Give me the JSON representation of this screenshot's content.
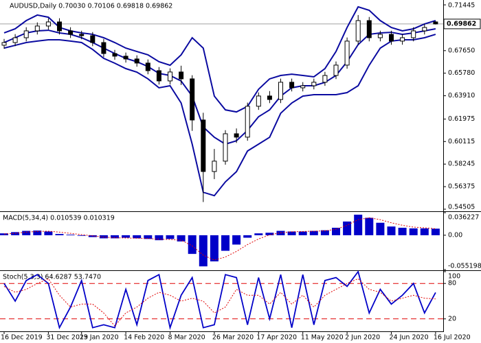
{
  "chart_data": [
    {
      "type": "candlestick",
      "title": "AUDUSD,Daily  0.70030 0.70106 0.69818 0.69862",
      "categories": [
        "16 Dec 2019",
        null,
        null,
        null,
        "31 Dec 2019",
        null,
        null,
        "23 Jan 2020",
        null,
        null,
        null,
        "14 Feb 2020",
        null,
        null,
        null,
        "8 Mar 2020",
        null,
        null,
        null,
        "26 Mar 2020",
        null,
        null,
        null,
        "17 Apr 2020",
        null,
        null,
        null,
        "11 May 2020",
        null,
        null,
        null,
        "2 Jun 2020",
        null,
        null,
        null,
        "24 Jun 2020",
        null,
        null,
        null,
        "16 Jul 2020"
      ],
      "open": [
        0.681,
        0.6832,
        0.6872,
        0.6929,
        0.6969,
        0.7003,
        0.6929,
        0.69,
        0.6889,
        0.6832,
        0.6741,
        0.6719,
        0.6696,
        0.6662,
        0.6599,
        0.6514,
        0.6588,
        0.6531,
        0.619,
        0.5763,
        0.5849,
        0.6076,
        0.6048,
        0.6304,
        0.6389,
        0.636,
        0.6503,
        0.6457,
        0.6474,
        0.6503,
        0.6559,
        0.6645,
        0.6844,
        0.7014,
        0.6872,
        0.69,
        0.6844,
        0.6872,
        0.6929,
        0.7003
      ],
      "high": [
        0.6862,
        0.6902,
        0.6959,
        0.6999,
        0.7033,
        0.7033,
        0.6959,
        0.693,
        0.6919,
        0.6862,
        0.6771,
        0.6749,
        0.6726,
        0.6692,
        0.6629,
        0.6618,
        0.664,
        0.6561,
        0.625,
        0.595,
        0.6106,
        0.612,
        0.6334,
        0.6419,
        0.643,
        0.6533,
        0.6533,
        0.6504,
        0.6533,
        0.6589,
        0.6675,
        0.6874,
        0.706,
        0.7044,
        0.693,
        0.693,
        0.6902,
        0.6959,
        0.6987,
        0.70106
      ],
      "low": [
        0.678,
        0.6802,
        0.6842,
        0.6899,
        0.6939,
        0.6899,
        0.687,
        0.6859,
        0.6802,
        0.6711,
        0.6689,
        0.6666,
        0.6632,
        0.6569,
        0.6484,
        0.6484,
        0.648,
        0.61,
        0.551,
        0.57,
        0.5819,
        0.6,
        0.6018,
        0.6274,
        0.633,
        0.633,
        0.6427,
        0.6427,
        0.6444,
        0.6473,
        0.6529,
        0.6615,
        0.6814,
        0.6842,
        0.6842,
        0.6814,
        0.6814,
        0.6842,
        0.6899,
        0.69818
      ],
      "close": [
        0.6832,
        0.6872,
        0.6929,
        0.6969,
        0.7003,
        0.6929,
        0.69,
        0.6889,
        0.6832,
        0.6741,
        0.6719,
        0.6696,
        0.6662,
        0.6599,
        0.6514,
        0.6588,
        0.6531,
        0.619,
        0.5763,
        0.5849,
        0.6076,
        0.6048,
        0.6304,
        0.6389,
        0.636,
        0.6503,
        0.6457,
        0.6474,
        0.6503,
        0.6559,
        0.6645,
        0.6844,
        0.7014,
        0.6872,
        0.69,
        0.6844,
        0.6872,
        0.6929,
        0.6957,
        0.69862
      ],
      "series": [
        {
          "color": "#0a0aa0",
          "values": [
            0.6912,
            0.6946,
            0.7014,
            0.706,
            0.7042,
            0.6957,
            0.6929,
            0.6912,
            0.69,
            0.6872,
            0.6832,
            0.6786,
            0.6758,
            0.673,
            0.6673,
            0.6644,
            0.673,
            0.6872,
            0.6786,
            0.6388,
            0.6274,
            0.6257,
            0.6303,
            0.6445,
            0.6531,
            0.6559,
            0.657,
            0.6559,
            0.6548,
            0.6616,
            0.6758,
            0.6957,
            0.7128,
            0.7099,
            0.7014,
            0.6957,
            0.6929,
            0.6946,
            0.6986,
            0.7014
          ]
        },
        {
          "color": "#0a0aa0",
          "values": [
            0.6832,
            0.6872,
            0.6912,
            0.6929,
            0.6934,
            0.6912,
            0.69,
            0.6872,
            0.6832,
            0.6786,
            0.6741,
            0.6701,
            0.6673,
            0.6633,
            0.6576,
            0.6559,
            0.6513,
            0.6388,
            0.6132,
            0.6047,
            0.599,
            0.6018,
            0.6104,
            0.6217,
            0.6274,
            0.6388,
            0.6457,
            0.6474,
            0.6474,
            0.6502,
            0.6559,
            0.6673,
            0.6815,
            0.69,
            0.6912,
            0.6917,
            0.69,
            0.6912,
            0.6929,
            0.6946
          ]
        },
        {
          "color": "#0a0aa0",
          "values": [
            0.6786,
            0.6809,
            0.6832,
            0.6844,
            0.6855,
            0.6855,
            0.6844,
            0.6832,
            0.6775,
            0.6701,
            0.6661,
            0.6616,
            0.6587,
            0.6531,
            0.6457,
            0.6474,
            0.6331,
            0.599,
            0.5591,
            0.5563,
            0.5677,
            0.5762,
            0.5933,
            0.599,
            0.6047,
            0.6246,
            0.6331,
            0.6388,
            0.64,
            0.64,
            0.64,
            0.6417,
            0.6474,
            0.6644,
            0.6786,
            0.6844,
            0.6855,
            0.6855,
            0.6872,
            0.69
          ]
        }
      ],
      "last_price": 0.69862,
      "ylim": [
        0.5439,
        0.7179
      ],
      "yticks": [
        0.71445,
        {
          "value": 0.6765,
          "label": "0.67650"
        },
        {
          "value": 0.6578,
          "label": "0.65780"
        },
        {
          "value": 0.6391,
          "label": "0.63910"
        },
        0.61975,
        0.60115,
        0.58245,
        0.56375,
        0.54505
      ]
    },
    {
      "type": "macd",
      "title": "MACD(5,34,4) 0.010539 0.010319",
      "color": "#0000c8",
      "values": [
        0.003,
        0.005,
        0.007,
        0.0075,
        0.006,
        0.002,
        0.001,
        -0.001,
        -0.003,
        -0.005,
        -0.005,
        -0.004,
        -0.005,
        -0.006,
        -0.008,
        -0.006,
        -0.01,
        -0.03,
        -0.05,
        -0.042,
        -0.025,
        -0.015,
        -0.004,
        0.003,
        0.004,
        0.007,
        0.006,
        0.006,
        0.007,
        0.008,
        0.012,
        0.022,
        0.033,
        0.028,
        0.02,
        0.014,
        0.012,
        0.011,
        0.011,
        0.010539
      ],
      "series": [
        {
          "color": "#e00000",
          "values": [
            0.002,
            0.003,
            0.005,
            0.006,
            0.0065,
            0.005,
            0.003,
            0.001,
            -0.001,
            -0.003,
            -0.004,
            -0.0045,
            -0.0048,
            -0.0052,
            -0.0065,
            -0.0068,
            -0.008,
            -0.017,
            -0.032,
            -0.04,
            -0.035,
            -0.026,
            -0.015,
            -0.006,
            0.0005,
            0.004,
            0.0055,
            0.006,
            0.0065,
            0.007,
            0.0095,
            0.016,
            0.025,
            0.028,
            0.025,
            0.02,
            0.016,
            0.013,
            0.012,
            0.010319
          ]
        }
      ],
      "ylim": [
        -0.055198,
        0.036227
      ],
      "yticks": [
        0.036227,
        {
          "value": 0,
          "label": "0.00"
        },
        -0.055198
      ]
    },
    {
      "type": "stochastic",
      "title": "Stoch(5,3,3) 64.6287 53.7470",
      "level_color": "#e00000",
      "series": [
        {
          "color": "#0000c8",
          "values": [
            80,
            50,
            85,
            95,
            80,
            5,
            40,
            85,
            5,
            10,
            5,
            70,
            10,
            85,
            95,
            5,
            60,
            90,
            5,
            10,
            95,
            90,
            10,
            90,
            20,
            95,
            5,
            95,
            10,
            85,
            90,
            75,
            100,
            30,
            70,
            45,
            60,
            80,
            30,
            64.6287
          ]
        },
        {
          "color": "#e00000",
          "values": [
            75,
            65,
            70,
            80,
            88,
            60,
            40,
            45,
            45,
            30,
            8,
            30,
            40,
            55,
            65,
            60,
            50,
            55,
            50,
            30,
            40,
            70,
            60,
            60,
            45,
            65,
            45,
            60,
            40,
            60,
            70,
            80,
            88,
            70,
            65,
            50,
            55,
            60,
            55,
            53.747
          ]
        }
      ],
      "ylim": [
        0,
        100
      ],
      "yticks": [
        20,
        80,
        100
      ]
    }
  ]
}
